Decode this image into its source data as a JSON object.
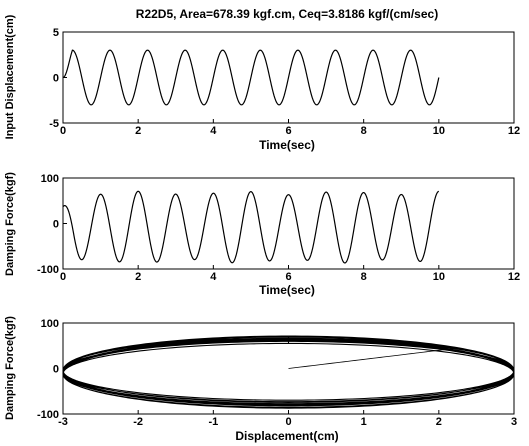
{
  "chart_data": [
    {
      "type": "line",
      "title": "R22D5, Area=678.39 kgf.cm, Ceq=3.8186 kgf/(cm/sec)",
      "xlabel": "Time(sec)",
      "ylabel": "Input Displacement(cm)",
      "xlim": [
        0,
        12
      ],
      "ylim": [
        -5,
        5
      ],
      "xticks": [
        "0",
        "2",
        "4",
        "6",
        "8",
        "10",
        "12"
      ],
      "yticks": [
        "-5",
        "0",
        "5"
      ],
      "grid": false,
      "series": [
        {
          "amplitude": 3.0,
          "frequency_hz": 1.0,
          "t_start": 0,
          "t_end": 10,
          "color": "#000000"
        }
      ]
    },
    {
      "type": "line",
      "title": "",
      "xlabel": "Time(sec)",
      "ylabel": "Damping Force(kgf)",
      "xlim": [
        0,
        12
      ],
      "ylim": [
        -100,
        100
      ],
      "xticks": [
        "0",
        "2",
        "4",
        "6",
        "8",
        "10",
        "12"
      ],
      "yticks": [
        "-100",
        "0",
        "100"
      ],
      "grid": false,
      "series": [
        {
          "amplitude": 75,
          "frequency_hz": 1.0,
          "phase_lead_sec": 0.25,
          "t_start": 0,
          "t_end": 10,
          "color": "#000000"
        }
      ]
    },
    {
      "type": "line",
      "title": "",
      "xlabel": "Displacement(cm)",
      "ylabel": "Damping Force(kgf)",
      "xlim": [
        -3,
        3
      ],
      "ylim": [
        -100,
        100
      ],
      "xticks": [
        "-3",
        "-2",
        "-1",
        "0",
        "1",
        "2",
        "3"
      ],
      "yticks": [
        "-100",
        "0",
        "100"
      ],
      "grid": false,
      "series": [
        {
          "displacement_amplitude": 3.0,
          "force_amplitude": 75,
          "loops": 10,
          "color": "#000000"
        }
      ]
    }
  ]
}
